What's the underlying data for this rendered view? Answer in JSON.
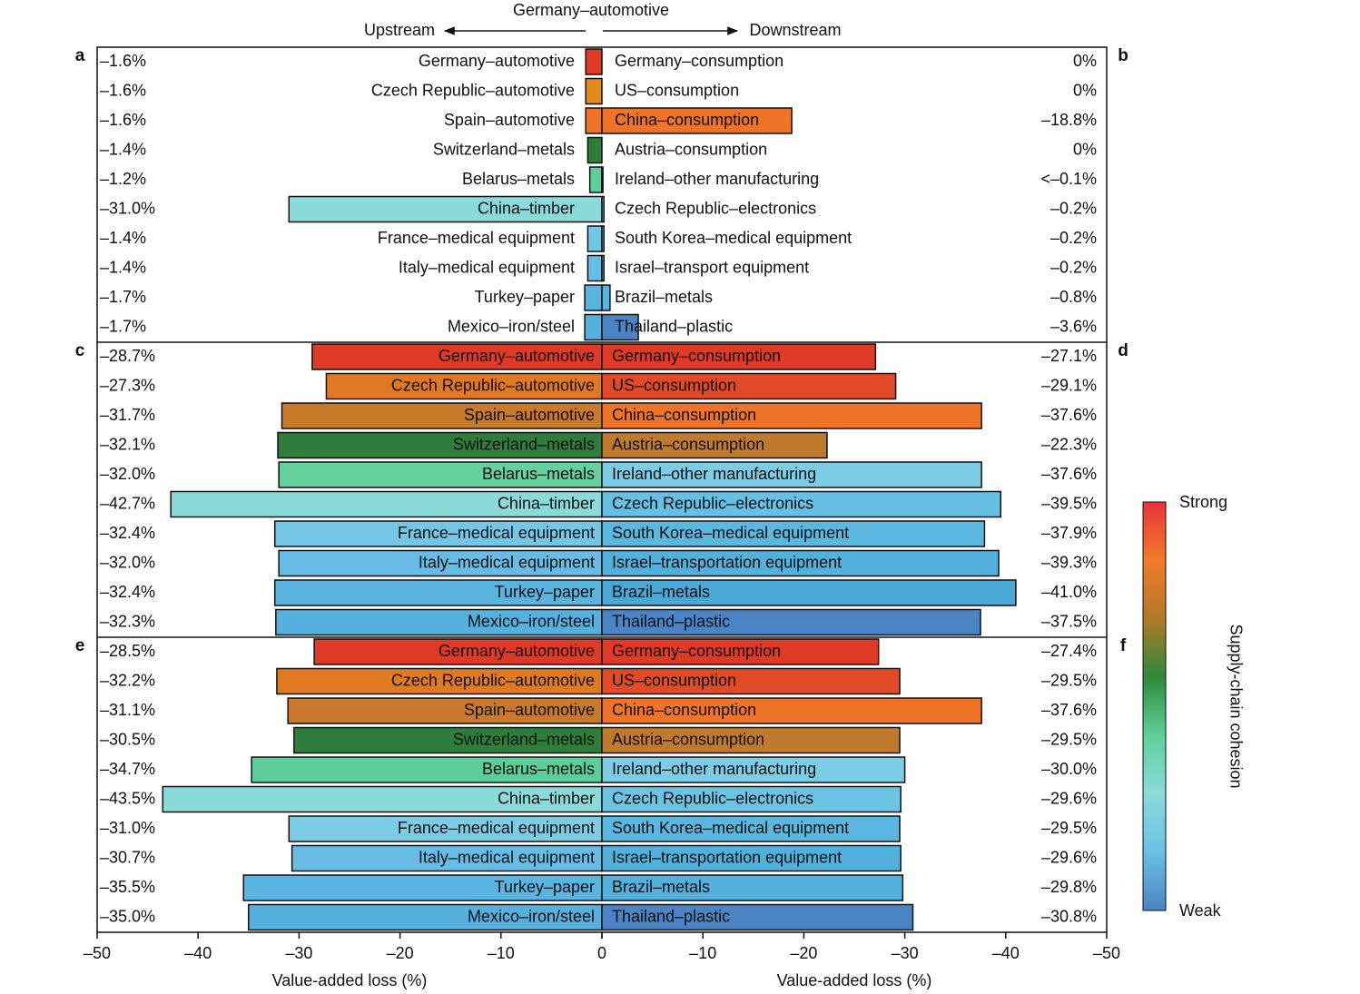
{
  "chart_data": {
    "type": "butterfly",
    "title": "Germany–automotive",
    "upstream_label": "Upstream",
    "downstream_label": "Downstream",
    "xlabel": "Value-added loss (%)",
    "xlim": [
      -50,
      0
    ],
    "xticks": [
      {
        "value": -50,
        "label": "–50"
      },
      {
        "value": -40,
        "label": "–40"
      },
      {
        "value": -30,
        "label": "–30"
      },
      {
        "value": -20,
        "label": "–20"
      },
      {
        "value": -10,
        "label": "–10"
      },
      0
    ],
    "colorbar": {
      "label": "Supply-chain cohesion",
      "high": "Strong",
      "low": "Weak",
      "colors": [
        "#e8353a",
        "#f07a2a",
        "#b07a2a",
        "#2e8a3a",
        "#5fd09a",
        "#8adada",
        "#6ac0e4",
        "#4a84c4"
      ]
    },
    "panels": [
      {
        "left_letter": "a",
        "right_letter": "b",
        "upstream": {
          "categories": [
            "Germany–automotive",
            "Czech Republic–automotive",
            "Spain–automotive",
            "Switzerland–metals",
            "Belarus–metals",
            "China–timber",
            "France–medical equipment",
            "Italy–medical equipment",
            "Turkey–paper",
            "Mexico–iron/steel"
          ],
          "values": [
            -1.6,
            -1.6,
            -1.6,
            -1.4,
            -1.2,
            -31.0,
            -1.4,
            -1.4,
            -1.7,
            -1.7
          ],
          "value_labels": [
            "–1.6%",
            "–1.6%",
            "–1.6%",
            "–1.4%",
            "–1.2%",
            "–31.0%",
            "–1.4%",
            "–1.4%",
            "–1.7%",
            "–1.7%"
          ],
          "colors": [
            "#e03a26",
            "#e08a1e",
            "#f07428",
            "#2e7d3a",
            "#5fcf9a",
            "#8adada",
            "#74c6e6",
            "#66bce4",
            "#5ab4e0",
            "#56b0de"
          ]
        },
        "downstream": {
          "categories": [
            "Germany–consumption",
            "US–consumption",
            "China–consumption",
            "Austria–consumption",
            "Ireland–other manufacturing",
            "Czech Republic–electronics",
            "South Korea–medical equipment",
            "Israel–transport equipment",
            "Brazil–metals",
            "Thailand–plastic"
          ],
          "values": [
            0,
            0,
            -18.8,
            0,
            -0.1,
            -0.2,
            -0.2,
            -0.2,
            -0.8,
            -3.6
          ],
          "value_labels": [
            "0%",
            "0%",
            "–18.8%",
            "0%",
            "<–0.1%",
            "–0.2%",
            "–0.2%",
            "–0.2%",
            "–0.8%",
            "–3.6%"
          ],
          "colors": [
            "#e03a26",
            "#e08a1e",
            "#f07428",
            "#2e7d3a",
            "#7ccce6",
            "#66c0e4",
            "#5ab8e0",
            "#52b0dc",
            "#5ab4e0",
            "#4a84c4"
          ]
        }
      },
      {
        "left_letter": "c",
        "right_letter": "d",
        "upstream": {
          "categories": [
            "Germany–automotive",
            "Czech Republic–automotive",
            "Spain–automotive",
            "Switzerland–metals",
            "Belarus–metals",
            "China–timber",
            "France–medical equipment",
            "Italy–medical equipment",
            "Turkey–paper",
            "Mexico–iron/steel"
          ],
          "values": [
            -28.7,
            -27.3,
            -31.7,
            -32.1,
            -32.0,
            -42.7,
            -32.4,
            -32.0,
            -32.4,
            -32.3
          ],
          "value_labels": [
            "–28.7%",
            "–27.3%",
            "–31.7%",
            "–32.1%",
            "–32.0%",
            "–42.7%",
            "–32.4%",
            "–32.0%",
            "–32.4%",
            "–32.3%"
          ],
          "colors": [
            "#e03a26",
            "#e07a22",
            "#c87a2a",
            "#2e7d3a",
            "#66d09e",
            "#8adada",
            "#74c6e6",
            "#66bce4",
            "#5ab4e0",
            "#56b0de"
          ]
        },
        "downstream": {
          "categories": [
            "Germany–consumption",
            "US–consumption",
            "China–consumption",
            "Austria–consumption",
            "Ireland–other manufacturing",
            "Czech Republic–electronics",
            "South Korea–medical equipment",
            "Israel–transportation equipment",
            "Brazil–metals",
            "Thailand–plastic"
          ],
          "values": [
            -27.1,
            -29.1,
            -37.6,
            -22.3,
            -37.6,
            -39.5,
            -37.9,
            -39.3,
            -41.0,
            -37.5
          ],
          "value_labels": [
            "–27.1%",
            "–29.1%",
            "–37.6%",
            "–22.3%",
            "–37.6%",
            "–39.5%",
            "–37.9%",
            "–39.3%",
            "–41.0%",
            "–37.5%"
          ],
          "colors": [
            "#e03a26",
            "#e04a26",
            "#f07428",
            "#c07a2e",
            "#7ccce6",
            "#66c0e4",
            "#5ab8e0",
            "#52b0dc",
            "#4aa8d8",
            "#4a84c4"
          ]
        }
      },
      {
        "left_letter": "e",
        "right_letter": "f",
        "upstream": {
          "categories": [
            "Germany–automotive",
            "Czech Republic–automotive",
            "Spain–automotive",
            "Switzerland–metals",
            "Belarus–metals",
            "China–timber",
            "France–medical equipment",
            "Italy–medical equipment",
            "Turkey–paper",
            "Mexico–iron/steel"
          ],
          "values": [
            -28.5,
            -32.2,
            -31.1,
            -30.5,
            -34.7,
            -43.5,
            -31.0,
            -30.7,
            -35.5,
            -35.0
          ],
          "value_labels": [
            "–28.5%",
            "–32.2%",
            "–31.1%",
            "–30.5%",
            "–34.7%",
            "–43.5%",
            "–31.0%",
            "–30.7%",
            "–35.5%",
            "–35.0%"
          ],
          "colors": [
            "#e03a26",
            "#e07a22",
            "#c87a2a",
            "#2e7d3a",
            "#5ccc98",
            "#8adada",
            "#7ccce6",
            "#66bce4",
            "#58b4e0",
            "#56b0de"
          ]
        },
        "downstream": {
          "categories": [
            "Germany–consumption",
            "US–consumption",
            "China–consumption",
            "Austria–consumption",
            "Ireland–other manufacturing",
            "Czech Republic–electronics",
            "South Korea–medical equipment",
            "Israel–transportation equipment",
            "Brazil–metals",
            "Thailand–plastic"
          ],
          "values": [
            -27.4,
            -29.5,
            -37.6,
            -29.5,
            -30.0,
            -29.6,
            -29.5,
            -29.6,
            -29.8,
            -30.8
          ],
          "value_labels": [
            "–27.4%",
            "–29.5%",
            "–37.6%",
            "–29.5%",
            "–30.0%",
            "–29.6%",
            "–29.5%",
            "–29.6%",
            "–29.8%",
            "–30.8%"
          ],
          "colors": [
            "#e03a26",
            "#e04a26",
            "#f07428",
            "#c07a2e",
            "#7ccce6",
            "#6cc4e4",
            "#5ab8e0",
            "#52b0dc",
            "#52b0dc",
            "#4a84c4"
          ]
        }
      }
    ]
  }
}
